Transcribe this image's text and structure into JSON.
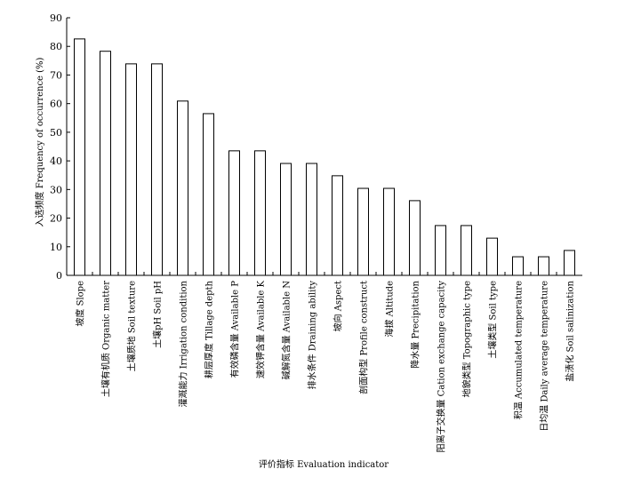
{
  "chart_data": {
    "type": "bar",
    "title": "",
    "xlabel": "评价指标 Evaluation indicator",
    "ylabel": "入选频度 Frequency of occurrence (%)",
    "ylim": [
      0,
      90
    ],
    "yticks": [
      0,
      10,
      20,
      30,
      40,
      50,
      60,
      70,
      80,
      90
    ],
    "grid": false,
    "categories": [
      "坡度 Slope",
      "土壤有机质 Organic matter",
      "土壤质地 Soil texture",
      "土壤pH Soil pH",
      "灌溉能力 Irrigation condition",
      "耕层厚度 Tillage depth",
      "有效磷含量 Available P",
      "速效钾含量 Available K",
      "碱解氮含量 Available N",
      "排水条件 Draining ability",
      "坡向 Aspect",
      "剖面构型 Profile construct",
      "海拔 Altitude",
      "降水量 Precipitation",
      "阳离子交换量 Cation exchange capacity",
      "地貌类型 Topographic type",
      "土壤类型 Soil type",
      "积温 Accumulated temperature",
      "日均温 Daily average temperature",
      "盐渍化 Soil salinization"
    ],
    "values": [
      82.6,
      78.3,
      73.9,
      73.9,
      60.9,
      56.5,
      43.5,
      43.5,
      39.1,
      39.1,
      34.8,
      30.4,
      30.4,
      26.1,
      17.4,
      17.4,
      13.0,
      6.5,
      6.5,
      8.7
    ],
    "colors": {
      "bar_fill": "#ffffff",
      "bar_stroke": "#000000",
      "axis": "#000000"
    }
  }
}
